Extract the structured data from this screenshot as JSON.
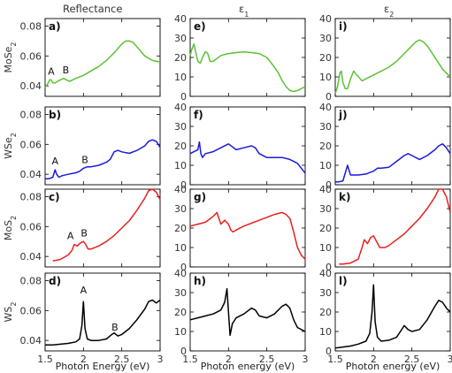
{
  "chart_data": {
    "type": "line",
    "column_titles": [
      "Reflectance",
      "ε",
      "ε"
    ],
    "column_title_subscripts": [
      "",
      "1",
      "2"
    ],
    "row_labels": [
      "MoSe",
      "WSe",
      "MoS",
      "WS"
    ],
    "row_label_subscript": "2",
    "xlabels": [
      "Photon Energy (eV)",
      "Photon energy (eV)",
      "Photon energy (eV)"
    ],
    "xlim": [
      1.5,
      3
    ],
    "xticks": [
      "1.5",
      "2",
      "2.5",
      "3"
    ],
    "refl_ylim": [
      0.033,
      0.085
    ],
    "refl_yticks": [
      "0.04",
      "0.06",
      "0.08"
    ],
    "eps_ylim": [
      0,
      40
    ],
    "eps_yticks": [
      "0",
      "10",
      "20",
      "30",
      "40"
    ],
    "panel_letters": [
      [
        "a)",
        "e)",
        "i)"
      ],
      [
        "b)",
        "f)",
        "j)"
      ],
      [
        "c)",
        "g)",
        "k)"
      ],
      [
        "d)",
        "h)",
        "l)"
      ]
    ],
    "row_colors": [
      "#5cc233",
      "#1a1adc",
      "#e8201e",
      "#000000"
    ],
    "annotations": [
      {
        "row": 0,
        "col": 0,
        "text": "A",
        "x": 1.58,
        "y": 0.0475
      },
      {
        "row": 0,
        "col": 0,
        "text": "B",
        "x": 1.77,
        "y": 0.0485
      },
      {
        "row": 1,
        "col": 0,
        "text": "A",
        "x": 1.63,
        "y": 0.0465
      },
      {
        "row": 1,
        "col": 0,
        "text": "B",
        "x": 2.02,
        "y": 0.0475
      },
      {
        "row": 2,
        "col": 0,
        "text": "A",
        "x": 1.83,
        "y": 0.0515
      },
      {
        "row": 2,
        "col": 0,
        "text": "B",
        "x": 2.01,
        "y": 0.0535
      },
      {
        "row": 3,
        "col": 0,
        "text": "A",
        "x": 2.0,
        "y": 0.0715
      },
      {
        "row": 3,
        "col": 0,
        "text": "B",
        "x": 2.41,
        "y": 0.0465
      }
    ],
    "series": [
      {
        "row": 0,
        "col": 0,
        "x": [
          1.5,
          1.53,
          1.56,
          1.58,
          1.6,
          1.63,
          1.66,
          1.7,
          1.74,
          1.78,
          1.82,
          1.9,
          2.0,
          2.1,
          2.2,
          2.3,
          2.4,
          2.45,
          2.5,
          2.55,
          2.6,
          2.65,
          2.7,
          2.75,
          2.8,
          2.9,
          3.0
        ],
        "y": [
          0.039,
          0.041,
          0.044,
          0.044,
          0.042,
          0.042,
          0.043,
          0.044,
          0.045,
          0.044,
          0.043,
          0.045,
          0.047,
          0.05,
          0.053,
          0.057,
          0.062,
          0.065,
          0.068,
          0.07,
          0.07,
          0.069,
          0.066,
          0.063,
          0.06,
          0.057,
          0.056
        ]
      },
      {
        "row": 1,
        "col": 0,
        "x": [
          1.5,
          1.55,
          1.6,
          1.63,
          1.65,
          1.68,
          1.72,
          1.8,
          1.9,
          1.95,
          2.0,
          2.05,
          2.1,
          2.2,
          2.3,
          2.35,
          2.4,
          2.45,
          2.5,
          2.6,
          2.7,
          2.8,
          2.85,
          2.9,
          2.95,
          3.0
        ],
        "y": [
          0.037,
          0.037,
          0.038,
          0.043,
          0.04,
          0.038,
          0.039,
          0.04,
          0.041,
          0.042,
          0.044,
          0.045,
          0.045,
          0.046,
          0.048,
          0.05,
          0.055,
          0.056,
          0.055,
          0.054,
          0.056,
          0.059,
          0.062,
          0.063,
          0.062,
          0.058
        ]
      },
      {
        "row": 2,
        "col": 0,
        "x": [
          1.6,
          1.7,
          1.8,
          1.85,
          1.88,
          1.92,
          1.96,
          2.0,
          2.03,
          2.06,
          2.1,
          2.2,
          2.3,
          2.4,
          2.5,
          2.6,
          2.7,
          2.75,
          2.8,
          2.85,
          2.9,
          2.95,
          3.0
        ],
        "y": [
          0.037,
          0.038,
          0.041,
          0.044,
          0.048,
          0.047,
          0.049,
          0.05,
          0.048,
          0.045,
          0.045,
          0.047,
          0.05,
          0.054,
          0.059,
          0.064,
          0.071,
          0.075,
          0.079,
          0.084,
          0.085,
          0.083,
          0.078
        ]
      },
      {
        "row": 3,
        "col": 0,
        "x": [
          1.5,
          1.6,
          1.7,
          1.8,
          1.9,
          1.95,
          1.98,
          2.0,
          2.02,
          2.05,
          2.1,
          2.2,
          2.3,
          2.37,
          2.4,
          2.45,
          2.5,
          2.6,
          2.7,
          2.8,
          2.85,
          2.9,
          2.95,
          3.0
        ],
        "y": [
          0.037,
          0.037,
          0.0375,
          0.038,
          0.039,
          0.041,
          0.05,
          0.066,
          0.048,
          0.041,
          0.04,
          0.04,
          0.041,
          0.044,
          0.045,
          0.043,
          0.044,
          0.048,
          0.054,
          0.061,
          0.066,
          0.067,
          0.065,
          0.067
        ]
      },
      {
        "row": 0,
        "col": 1,
        "x": [
          1.5,
          1.52,
          1.55,
          1.57,
          1.6,
          1.63,
          1.66,
          1.7,
          1.73,
          1.76,
          1.8,
          1.9,
          2.0,
          2.1,
          2.2,
          2.3,
          2.4,
          2.5,
          2.6,
          2.65,
          2.7,
          2.75,
          2.8,
          2.85,
          2.9,
          3.0
        ],
        "y": [
          21,
          24,
          27,
          23,
          18,
          17,
          20,
          23,
          22,
          18,
          18,
          21,
          22,
          22.5,
          22.8,
          22.5,
          22,
          20,
          15,
          12,
          8,
          5,
          3,
          2.5,
          3,
          5
        ]
      },
      {
        "row": 1,
        "col": 1,
        "x": [
          1.5,
          1.55,
          1.6,
          1.62,
          1.64,
          1.66,
          1.7,
          1.8,
          1.9,
          2.0,
          2.1,
          2.2,
          2.3,
          2.35,
          2.4,
          2.5,
          2.6,
          2.7,
          2.8,
          2.9,
          3.0
        ],
        "y": [
          16,
          17,
          18,
          22,
          16,
          14,
          16,
          17,
          19,
          21,
          18,
          19,
          20,
          19,
          16,
          14,
          14,
          14,
          13,
          11,
          6
        ]
      },
      {
        "row": 2,
        "col": 1,
        "x": [
          1.5,
          1.6,
          1.7,
          1.8,
          1.85,
          1.9,
          1.95,
          2.0,
          2.03,
          2.06,
          2.1,
          2.2,
          2.3,
          2.4,
          2.5,
          2.6,
          2.7,
          2.75,
          2.8,
          2.85,
          2.9,
          2.95,
          3.0
        ],
        "y": [
          21,
          22,
          23,
          26,
          28,
          22,
          24,
          22,
          19,
          18,
          19,
          21,
          22.5,
          24,
          25.5,
          27,
          28,
          27,
          25,
          18,
          10,
          6,
          4
        ]
      },
      {
        "row": 3,
        "col": 1,
        "x": [
          1.5,
          1.6,
          1.7,
          1.8,
          1.9,
          1.95,
          1.98,
          2.0,
          2.02,
          2.05,
          2.1,
          2.2,
          2.3,
          2.35,
          2.4,
          2.5,
          2.6,
          2.7,
          2.75,
          2.8,
          2.85,
          2.9,
          3.0
        ],
        "y": [
          16,
          17,
          18,
          19,
          21,
          25,
          32,
          20,
          8,
          14,
          17,
          19,
          22,
          21,
          18,
          17,
          19,
          23,
          24,
          22,
          16,
          12,
          10
        ]
      },
      {
        "row": 0,
        "col": 2,
        "x": [
          1.5,
          1.53,
          1.56,
          1.58,
          1.6,
          1.63,
          1.66,
          1.7,
          1.74,
          1.78,
          1.85,
          1.9,
          2.0,
          2.1,
          2.2,
          2.3,
          2.4,
          2.5,
          2.55,
          2.6,
          2.65,
          2.7,
          2.8,
          2.9,
          3.0
        ],
        "y": [
          1.5,
          5,
          12,
          13,
          7,
          4,
          4,
          9,
          13,
          11,
          8,
          9,
          11,
          13,
          15,
          18,
          22,
          26,
          28,
          29,
          28,
          26,
          20,
          14,
          10
        ]
      },
      {
        "row": 1,
        "col": 2,
        "x": [
          1.5,
          1.55,
          1.6,
          1.63,
          1.66,
          1.7,
          1.8,
          1.9,
          2.0,
          2.05,
          2.1,
          2.2,
          2.3,
          2.4,
          2.45,
          2.5,
          2.6,
          2.7,
          2.8,
          2.85,
          2.9,
          2.95,
          3.0
        ],
        "y": [
          1.5,
          1.5,
          2,
          6,
          10,
          5,
          5,
          5.5,
          7,
          8.5,
          8.5,
          9,
          12,
          15,
          16,
          15,
          13,
          15,
          18,
          20,
          21,
          19,
          16
        ]
      },
      {
        "row": 2,
        "col": 2,
        "x": [
          1.55,
          1.6,
          1.7,
          1.8,
          1.85,
          1.88,
          1.92,
          1.96,
          2.0,
          2.04,
          2.08,
          2.15,
          2.2,
          2.3,
          2.4,
          2.5,
          2.6,
          2.7,
          2.8,
          2.85,
          2.9,
          2.95,
          3.0
        ],
        "y": [
          1.5,
          1.5,
          2,
          4,
          10,
          14,
          12,
          15,
          16,
          13,
          10,
          10,
          11,
          14,
          17,
          21,
          25,
          30,
          36,
          40,
          40,
          36,
          28
        ]
      },
      {
        "row": 3,
        "col": 2,
        "x": [
          1.5,
          1.6,
          1.7,
          1.8,
          1.9,
          1.95,
          1.98,
          2.0,
          2.02,
          2.05,
          2.1,
          2.2,
          2.3,
          2.35,
          2.4,
          2.45,
          2.5,
          2.6,
          2.7,
          2.8,
          2.85,
          2.9,
          2.95,
          3.0
        ],
        "y": [
          1.5,
          2,
          2.5,
          3.5,
          5,
          9,
          20,
          34,
          15,
          7,
          5,
          5.5,
          7,
          10,
          13,
          11,
          10,
          11,
          16,
          23,
          26,
          25,
          22,
          20
        ]
      }
    ]
  }
}
